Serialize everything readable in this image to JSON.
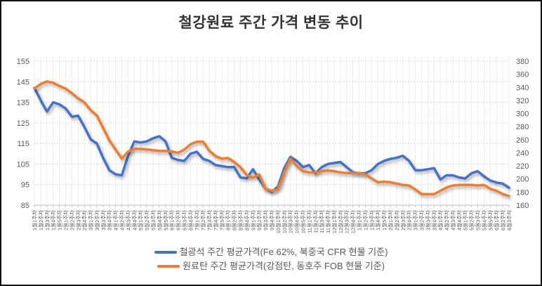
{
  "title": "철강원료 주간 가격 변동 추이",
  "legend": [
    {
      "label": "철광석 주간 평균가격(Fe 62%, 북중국 CFR 현물 기준)",
      "color": "#4472C4"
    },
    {
      "label": "원료탄 주간 평균가격(강점탄, 동호주 FOB 현물 기준)",
      "color": "#ED7D31"
    }
  ],
  "chart_data": {
    "type": "line",
    "title": "철강원료 주간 가격 변동 추이",
    "grid": true,
    "legend_position": "bottom",
    "left_axis": {
      "min": 85,
      "max": 155,
      "step": 10,
      "ticks": [
        155,
        145,
        135,
        125,
        115,
        105,
        95,
        85
      ]
    },
    "right_axis": {
      "min": 160,
      "max": 380,
      "step": 20,
      "ticks": [
        380,
        360,
        340,
        320,
        300,
        280,
        260,
        240,
        220,
        200,
        180,
        160
      ]
    },
    "categories": [
      "1월1주차",
      "1월2주차",
      "1월3주차",
      "1월4주차",
      "1월5주차",
      "2월1주차",
      "2월2주차",
      "2월3주차",
      "2월4주차",
      "3월1주차",
      "3월2주차",
      "3월3주차",
      "3월4주차",
      "4월1주차",
      "4월2주차",
      "4월3주차",
      "4월4주차",
      "5월1주차",
      "5월2주차",
      "5월3주차",
      "5월4주차",
      "5월5주차",
      "6월1주차",
      "6월2주차",
      "6월3주차",
      "6월4주차",
      "7월1주차",
      "7월2주차",
      "7월3주차",
      "7월4주차",
      "7월5주차",
      "8월1주차",
      "8월2주차",
      "8월3주차",
      "8월4주차",
      "9월1주차",
      "9월2주차",
      "9월3주차",
      "9월4주차",
      "10월1주차",
      "10월2주차",
      "10월3주차",
      "10월4주차",
      "10월5주차",
      "11월1주차",
      "11월2주차",
      "11월3주차",
      "11월4주차",
      "12월1주차",
      "12월2주차",
      "12월3주차",
      "12월4주차",
      "1월1주차",
      "1월2주차",
      "1월3주차",
      "1월4주차",
      "1월5주차",
      "2월1주차",
      "2월2주차",
      "2월3주차",
      "2월4주차",
      "3월1주차",
      "3월2주차",
      "3월3주차",
      "3월4주차",
      "4월1주차",
      "4월2주차",
      "4월3주차",
      "4월4주차",
      "5월1주차",
      "5월2주차",
      "5월3주차",
      "5월4주차",
      "5월5주차",
      "6월1주차",
      "6월2주차",
      "6월3주차"
    ],
    "series": [
      {
        "name": "철광석 주간 평균가격(Fe 62%, 북중국 CFR 현물 기준)",
        "axis": "left",
        "color": "#4472C4",
        "values": [
          142,
          136,
          130.5,
          135,
          134,
          132,
          128,
          128.5,
          123,
          117,
          115,
          108,
          102,
          100,
          99.5,
          109,
          116,
          115.5,
          116,
          117.5,
          118.5,
          116,
          108,
          107,
          106.5,
          110,
          111,
          107.5,
          106.5,
          104.5,
          104,
          103.5,
          103.5,
          98.5,
          98,
          102.5,
          97.5,
          93,
          91.5,
          94,
          103,
          108.5,
          106.5,
          103.5,
          104.5,
          100.5,
          103.5,
          105,
          105.5,
          106,
          103.5,
          101,
          100.5,
          100.5,
          102,
          105,
          106.5,
          107.5,
          108,
          109,
          106.5,
          102,
          102,
          102.5,
          103,
          97.5,
          99.5,
          99.5,
          98.5,
          98,
          100.5,
          101.5,
          99,
          97,
          96,
          95.5,
          93.5
        ]
      },
      {
        "name": "원료탄 주간 평균가격(강점탄, 동호주 FOB 현물 기준)",
        "axis": "right",
        "color": "#ED7D31",
        "values": [
          338,
          345,
          349,
          347,
          342,
          338,
          331,
          323,
          317,
          305,
          297,
          278,
          259,
          245,
          231,
          242,
          246,
          246,
          245,
          244,
          243,
          243,
          242,
          240,
          245,
          253,
          257,
          257,
          243,
          235,
          231,
          232,
          226,
          218,
          206,
          202,
          207,
          185,
          182,
          184,
          210,
          231,
          220,
          212,
          210,
          210,
          212,
          213,
          212,
          210,
          209,
          209,
          209,
          207,
          201,
          195,
          196,
          195,
          193,
          191,
          190,
          184,
          177,
          177,
          177,
          182,
          187,
          190,
          191,
          191,
          191,
          190,
          191,
          185,
          182,
          177,
          174
        ]
      }
    ]
  }
}
